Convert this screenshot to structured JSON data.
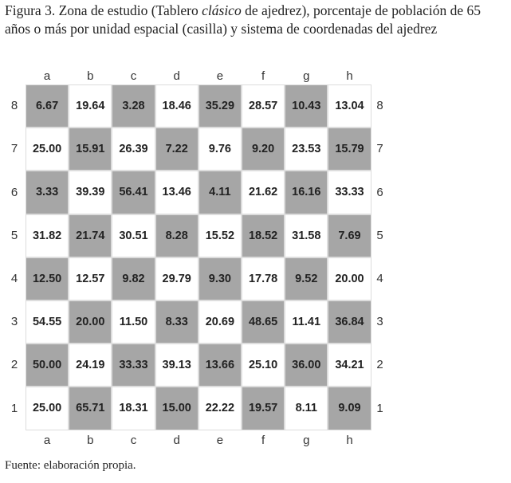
{
  "caption": {
    "parts": [
      "Figura 3. Zona de estudio (Tablero ",
      "clásico",
      " de ajedrez), porcentaje de población de 65 años o más por unidad espacial (casilla) y sistema de coordenadas del ajedrez"
    ]
  },
  "board": {
    "columns": [
      "a",
      "b",
      "c",
      "d",
      "e",
      "f",
      "g",
      "h"
    ],
    "row_labels": [
      "8",
      "7",
      "6",
      "5",
      "4",
      "3",
      "2",
      "1"
    ],
    "rows": [
      [
        "6.67",
        "19.64",
        "3.28",
        "18.46",
        "35.29",
        "28.57",
        "10.43",
        "13.04"
      ],
      [
        "25.00",
        "15.91",
        "26.39",
        "7.22",
        "9.76",
        "9.20",
        "23.53",
        "15.79"
      ],
      [
        "3.33",
        "39.39",
        "56.41",
        "13.46",
        "4.11",
        "21.62",
        "16.16",
        "33.33"
      ],
      [
        "31.82",
        "21.74",
        "30.51",
        "8.28",
        "15.52",
        "18.52",
        "31.58",
        "7.69"
      ],
      [
        "12.50",
        "12.57",
        "9.82",
        "29.79",
        "9.30",
        "17.78",
        "9.52",
        "20.00"
      ],
      [
        "54.55",
        "20.00",
        "11.50",
        "8.33",
        "20.69",
        "48.65",
        "11.41",
        "36.84"
      ],
      [
        "50.00",
        "24.19",
        "33.33",
        "39.13",
        "13.66",
        "25.10",
        "36.00",
        "34.21"
      ],
      [
        "25.00",
        "65.71",
        "18.31",
        "15.00",
        "22.22",
        "19.57",
        "8.11",
        "9.09"
      ]
    ]
  },
  "source": "Fuente: elaboración propia."
}
